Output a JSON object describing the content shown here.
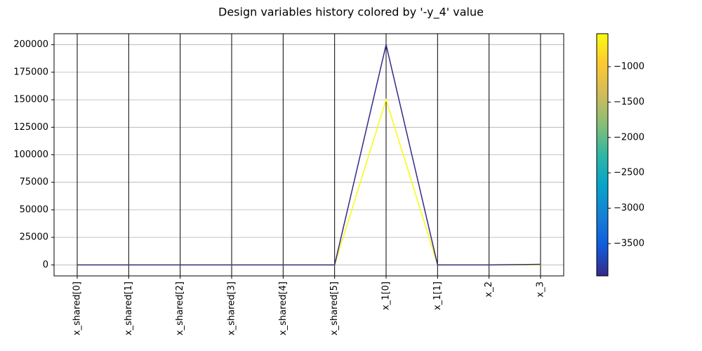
{
  "chart_data": {
    "type": "parallel",
    "title": "Design variables history colored by '-y_4' value",
    "categories": [
      "x_shared[0]",
      "x_shared[1]",
      "x_shared[2]",
      "x_shared[3]",
      "x_shared[4]",
      "x_shared[5]",
      "x_1[0]",
      "x_1[1]",
      "x_2",
      "x_3"
    ],
    "series": [
      {
        "color": "#f9fb0e",
        "values": [
          0,
          0,
          0,
          0,
          0,
          0,
          150000,
          0,
          0,
          0
        ]
      },
      {
        "color": "#352a87",
        "values": [
          0,
          0,
          0,
          0,
          0,
          0,
          200000,
          0,
          0,
          500
        ]
      }
    ],
    "ylim": [
      -10000,
      210000
    ],
    "yticks": [
      0,
      25000,
      50000,
      75000,
      100000,
      125000,
      150000,
      175000,
      200000
    ],
    "grid": true,
    "colorbar": {
      "lim": [
        -3956,
        -534
      ],
      "colors": [
        "#352a87",
        "#0f5cdd",
        "#1481d6",
        "#06a4ca",
        "#2eb7a4",
        "#87bf77",
        "#d1bb59",
        "#fec832",
        "#f9fb0e"
      ],
      "ticks": [
        {
          "value": -1000,
          "label": "−1000"
        },
        {
          "value": -1500,
          "label": "−1500"
        },
        {
          "value": -2000,
          "label": "−2000"
        },
        {
          "value": -2500,
          "label": "−2500"
        },
        {
          "value": -3000,
          "label": "−3000"
        },
        {
          "value": -3500,
          "label": "−3500"
        }
      ]
    }
  }
}
